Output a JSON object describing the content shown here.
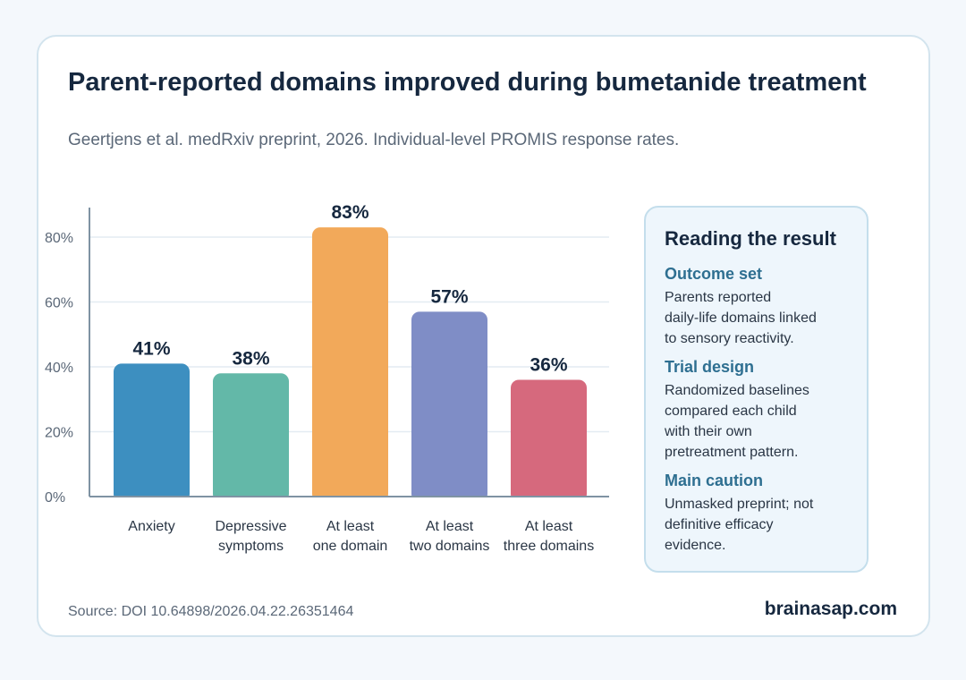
{
  "title": "Parent-reported domains improved during bumetanide treatment",
  "subtitle": "Geertjens et al. medRxiv preprint, 2026. Individual-level PROMIS response rates.",
  "chart_data": {
    "type": "bar",
    "title": "",
    "xlabel": "",
    "ylabel": "",
    "categories": [
      [
        "Anxiety"
      ],
      [
        "Depressive",
        "symptoms"
      ],
      [
        "At least",
        "one domain"
      ],
      [
        "At least",
        "two domains"
      ],
      [
        "At least",
        "three domains"
      ]
    ],
    "values": [
      41,
      38,
      83,
      57,
      36
    ],
    "value_labels": [
      "41%",
      "38%",
      "83%",
      "57%",
      "36%"
    ],
    "colors": [
      "#3d8fc0",
      "#63b8a8",
      "#f2a95a",
      "#7f8dc6",
      "#d6697d"
    ],
    "ylim": [
      0,
      90
    ],
    "yticks": [
      0,
      20,
      40,
      60,
      80
    ],
    "ytick_labels": [
      "0%",
      "20%",
      "40%",
      "60%",
      "80%"
    ],
    "grid": true,
    "legend": "none"
  },
  "sidebar": {
    "heading": "Reading the result",
    "sections": [
      {
        "title": "Outcome set",
        "lines": [
          "Parents reported",
          "daily-life domains linked",
          "to sensory reactivity."
        ]
      },
      {
        "title": "Trial design",
        "lines": [
          "Randomized baselines",
          "compared each child",
          "with their own",
          "pretreatment pattern."
        ]
      },
      {
        "title": "Main caution",
        "lines": [
          "Unmasked preprint; not",
          "definitive efficacy",
          "evidence."
        ]
      }
    ]
  },
  "footer": {
    "source": "Source: DOI 10.64898/2026.04.22.26351464",
    "brand": "brainasap.com"
  }
}
